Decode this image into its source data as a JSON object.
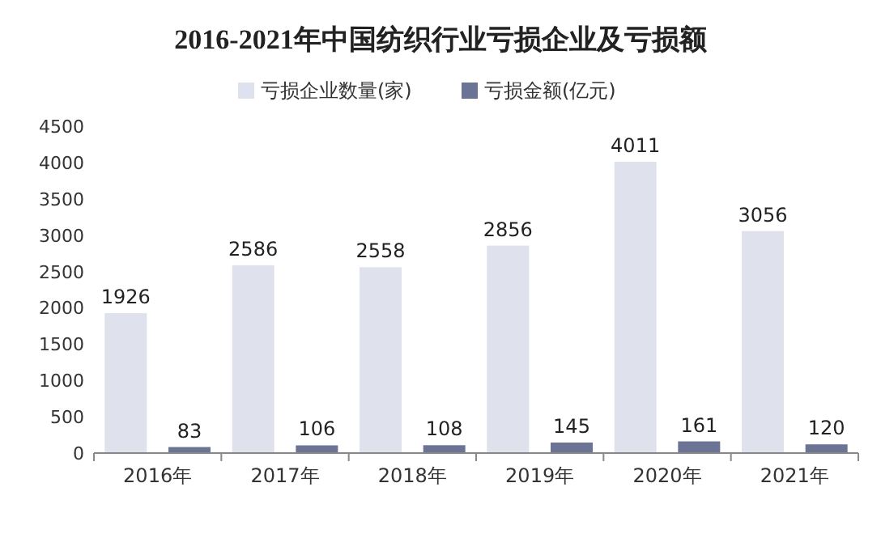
{
  "chart_data": {
    "type": "bar",
    "title": "2016-2021年中国纺织行业亏损企业及亏损额",
    "categories": [
      "2016年",
      "2017年",
      "2018年",
      "2019年",
      "2020年",
      "2021年"
    ],
    "series": [
      {
        "name": "亏损企业数量(家)",
        "color": "#dfe1ec",
        "values": [
          1926,
          2586,
          2558,
          2856,
          4011,
          3056
        ]
      },
      {
        "name": "亏损金额(亿元)",
        "color": "#6c7495",
        "values": [
          83,
          106,
          108,
          145,
          161,
          120
        ]
      }
    ],
    "ylim": [
      0,
      4500
    ],
    "yticks": [
      0,
      500,
      1000,
      1500,
      2000,
      2500,
      3000,
      3500,
      4000,
      4500
    ],
    "legend": "top",
    "data_labels": true
  }
}
